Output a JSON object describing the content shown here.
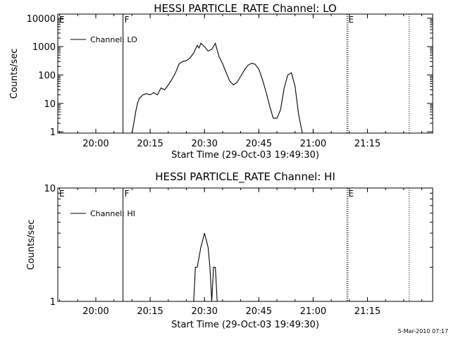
{
  "stamp": "5-Mar-2010 07:17",
  "chart_data": [
    {
      "type": "line",
      "title": "HESSI PARTICLE_RATE Channel: LO",
      "xlabel": "Start Time (29-Oct-03 19:49:30)",
      "ylabel": "Counts/sec",
      "yscale": "log",
      "ylim": [
        0.9,
        14000
      ],
      "xlim": [
        "19:49:30",
        "21:33:00"
      ],
      "xticks": [
        "20:00",
        "20:15",
        "20:30",
        "20:45",
        "21:00",
        "21:15"
      ],
      "yticks": [
        "1",
        "10",
        "100",
        "1000",
        "10000"
      ],
      "markers": [
        {
          "label": "E",
          "time": "19:49:30",
          "style": "solid"
        },
        {
          "label": "F",
          "time": "20:07:30",
          "style": "solid"
        },
        {
          "label": "E",
          "time": "21:09:20",
          "style": "dotted"
        },
        {
          "label": "",
          "time": "21:26:30",
          "style": "dotted"
        }
      ],
      "legend": {
        "position": "top-left",
        "entries": [
          "Channel: LO"
        ]
      },
      "series": [
        {
          "name": "Channel: LO",
          "color": "#000000",
          "x": [
            "20:10:00",
            "20:10:30",
            "20:11:00",
            "20:11:30",
            "20:12:00",
            "20:13:00",
            "20:14:00",
            "20:15:00",
            "20:16:00",
            "20:17:00",
            "20:18:00",
            "20:19:00",
            "20:20:00",
            "20:21:00",
            "20:22:00",
            "20:23:00",
            "20:24:00",
            "20:25:00",
            "20:26:00",
            "20:27:00",
            "20:28:00",
            "20:28:30",
            "20:29:00",
            "20:30:00",
            "20:31:00",
            "20:32:00",
            "20:33:00",
            "20:34:00",
            "20:35:00",
            "20:36:00",
            "20:37:00",
            "20:38:00",
            "20:39:00",
            "20:40:00",
            "20:41:00",
            "20:42:00",
            "20:43:00",
            "20:44:00",
            "20:45:00",
            "20:46:00",
            "20:47:00",
            "20:48:00",
            "20:49:00",
            "20:50:00",
            "20:51:00",
            "20:52:00",
            "20:53:00",
            "20:54:00",
            "20:55:00",
            "20:56:00",
            "20:57:00"
          ],
          "values": [
            0.9,
            2,
            5,
            10,
            15,
            20,
            22,
            20,
            24,
            20,
            35,
            30,
            45,
            70,
            120,
            250,
            300,
            320,
            400,
            600,
            1100,
            900,
            1300,
            1000,
            700,
            800,
            1300,
            450,
            250,
            120,
            60,
            45,
            55,
            90,
            150,
            220,
            260,
            240,
            160,
            70,
            25,
            8,
            3,
            3,
            6,
            35,
            100,
            120,
            40,
            4,
            0.9
          ]
        }
      ]
    },
    {
      "type": "line",
      "title": "HESSI PARTICLE_RATE Channel: HI",
      "xlabel": "Start Time (29-Oct-03 19:49:30)",
      "ylabel": "Counts/sec",
      "yscale": "log",
      "ylim": [
        1,
        10
      ],
      "xlim": [
        "19:49:30",
        "21:33:00"
      ],
      "xticks": [
        "20:00",
        "20:15",
        "20:30",
        "20:45",
        "21:00",
        "21:15"
      ],
      "yticks": [
        "1",
        "10"
      ],
      "markers": [
        {
          "label": "E",
          "time": "19:49:30",
          "style": "solid"
        },
        {
          "label": "F",
          "time": "20:07:30",
          "style": "solid"
        },
        {
          "label": "E",
          "time": "21:09:20",
          "style": "dotted"
        },
        {
          "label": "",
          "time": "21:26:30",
          "style": "dotted"
        }
      ],
      "legend": {
        "position": "top-left",
        "entries": [
          "Channel: HI"
        ]
      },
      "series": [
        {
          "name": "Channel: HI",
          "color": "#000000",
          "x": [
            "20:27:00",
            "20:27:30",
            "20:28:00",
            "20:29:00",
            "20:30:00",
            "20:31:00",
            "20:31:30",
            "20:32:00",
            "20:32:30",
            "20:33:00",
            "20:33:30",
            "20:34:00"
          ],
          "values": [
            1,
            2,
            2,
            3,
            4,
            3,
            2,
            1,
            2,
            2,
            1,
            1
          ]
        }
      ]
    }
  ]
}
